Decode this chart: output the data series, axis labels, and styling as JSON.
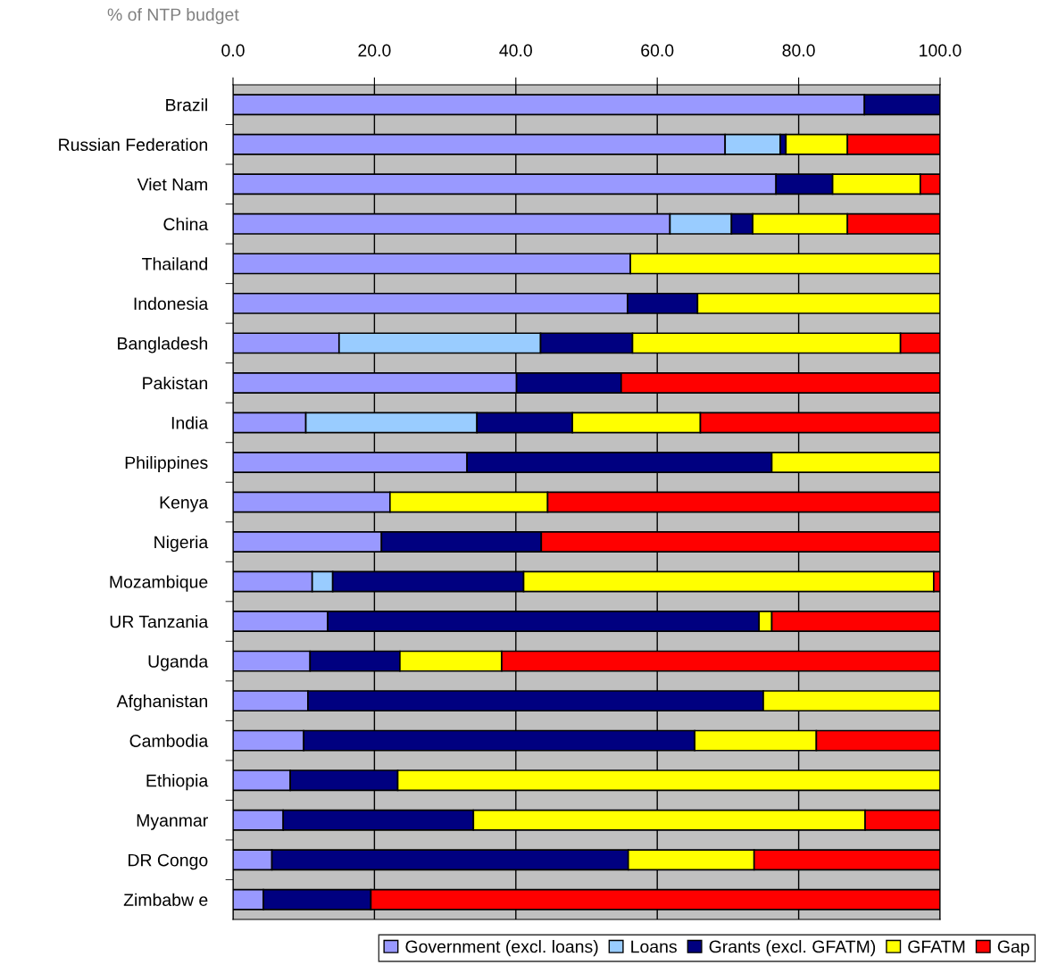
{
  "chart_data": {
    "type": "bar",
    "orientation": "horizontal",
    "stacked": true,
    "xlabel": "% of NTP budget",
    "categories": [
      "Brazil",
      "Russian Federation",
      "Viet Nam",
      "China",
      "Thailand",
      "Indonesia",
      "Bangladesh",
      "Pakistan",
      "India",
      "Philippines",
      "Kenya",
      "Nigeria",
      "Mozambique",
      "UR Tanzania",
      "Uganda",
      "Afghanistan",
      "Cambodia",
      "Ethiopia",
      "Myanmar",
      "DR Congo",
      "Zimbabw e"
    ],
    "series": [
      {
        "name": "Government (excl. loans)",
        "color": "#9999ff",
        "values": [
          89.3,
          69.6,
          76.8,
          61.8,
          56.2,
          55.8,
          15.0,
          40.1,
          10.3,
          33.1,
          22.2,
          21.0,
          11.2,
          13.4,
          10.9,
          10.6,
          10.0,
          8.1,
          7.1,
          5.5,
          4.3
        ]
      },
      {
        "name": "Loans",
        "color": "#99ccff",
        "values": [
          0,
          7.8,
          0,
          8.7,
          0,
          0,
          28.5,
          0,
          24.2,
          0,
          0,
          0,
          2.9,
          0,
          0,
          0,
          0,
          0,
          0,
          0,
          0
        ]
      },
      {
        "name": "Grants (excl. GFATM)",
        "color": "#000080",
        "values": [
          10.7,
          0.8,
          8.0,
          3.0,
          0,
          9.9,
          13.0,
          14.8,
          13.5,
          43.1,
          0,
          22.6,
          27.0,
          61.0,
          12.7,
          64.4,
          55.3,
          15.2,
          26.9,
          50.4,
          15.2
        ]
      },
      {
        "name": "GFATM",
        "color": "#ffff00",
        "values": [
          0,
          8.7,
          12.4,
          13.4,
          43.8,
          34.3,
          37.9,
          0,
          18.1,
          23.8,
          22.3,
          0,
          58.0,
          1.8,
          14.4,
          25.0,
          17.2,
          76.7,
          55.4,
          17.8,
          0
        ]
      },
      {
        "name": "Gap",
        "color": "#ff0000",
        "values": [
          0,
          13.1,
          2.8,
          13.1,
          0,
          0,
          5.6,
          45.1,
          33.9,
          0,
          55.5,
          56.4,
          0.9,
          23.8,
          62.0,
          0,
          17.5,
          0,
          10.6,
          26.3,
          80.5
        ]
      }
    ],
    "xlim": [
      0,
      100
    ],
    "xticks": [
      {
        "value": 0,
        "label": "0.0"
      },
      {
        "value": 20,
        "label": "20.0"
      },
      {
        "value": 40,
        "label": "40.0"
      },
      {
        "value": 60,
        "label": "60.0"
      },
      {
        "value": 80,
        "label": "80.0"
      },
      {
        "value": 100,
        "label": "100.0"
      }
    ],
    "grid": "x",
    "legend": "bottom"
  }
}
